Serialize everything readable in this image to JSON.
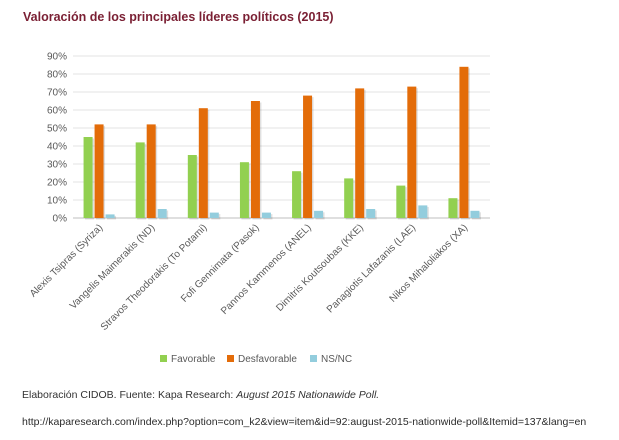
{
  "page": {
    "title": "Valoración de los principales líderes políticos (2015)",
    "caption_prefix": "Elaboración CIDOB. Fuente: Kapa Research: ",
    "caption_italic": "August 2015 Nationawide Poll.",
    "url": "http://kaparesearch.com/index.php?option=com_k2&view=item&id=92:august-2015-nationwide-poll&Itemid=137&lang=en"
  },
  "chart_data": {
    "type": "bar",
    "title": "",
    "xlabel": "",
    "ylabel": "",
    "ylim": [
      0,
      90
    ],
    "yticks": [
      "0%",
      "10%",
      "20%",
      "30%",
      "40%",
      "50%",
      "60%",
      "70%",
      "80%",
      "90%"
    ],
    "grid": true,
    "legend_position": "bottom",
    "categories": [
      "Alexis Tsipras (Syriza)",
      "Vangelis Maimerakis (ND)",
      "Stravos Theodorakis (To Potami)",
      "Fofi Gennimata (Pasok)",
      "Pannos Kammenos (ANEL)",
      "Dimitris Koutsoubas (KKE)",
      "Panagiotis Lafazanis (LAE)",
      "Nikos Mihaloliakos (XA)"
    ],
    "series": [
      {
        "name": "Favorable",
        "color": "#92d050",
        "values": [
          45,
          42,
          35,
          31,
          26,
          22,
          18,
          11
        ]
      },
      {
        "name": "Desfavorable",
        "color": "#e36c09",
        "values": [
          52,
          52,
          61,
          65,
          68,
          72,
          73,
          84
        ]
      },
      {
        "name": "NS/NC",
        "color": "#93cddd",
        "values": [
          2,
          5,
          3,
          3,
          4,
          5,
          7,
          4
        ]
      }
    ]
  }
}
